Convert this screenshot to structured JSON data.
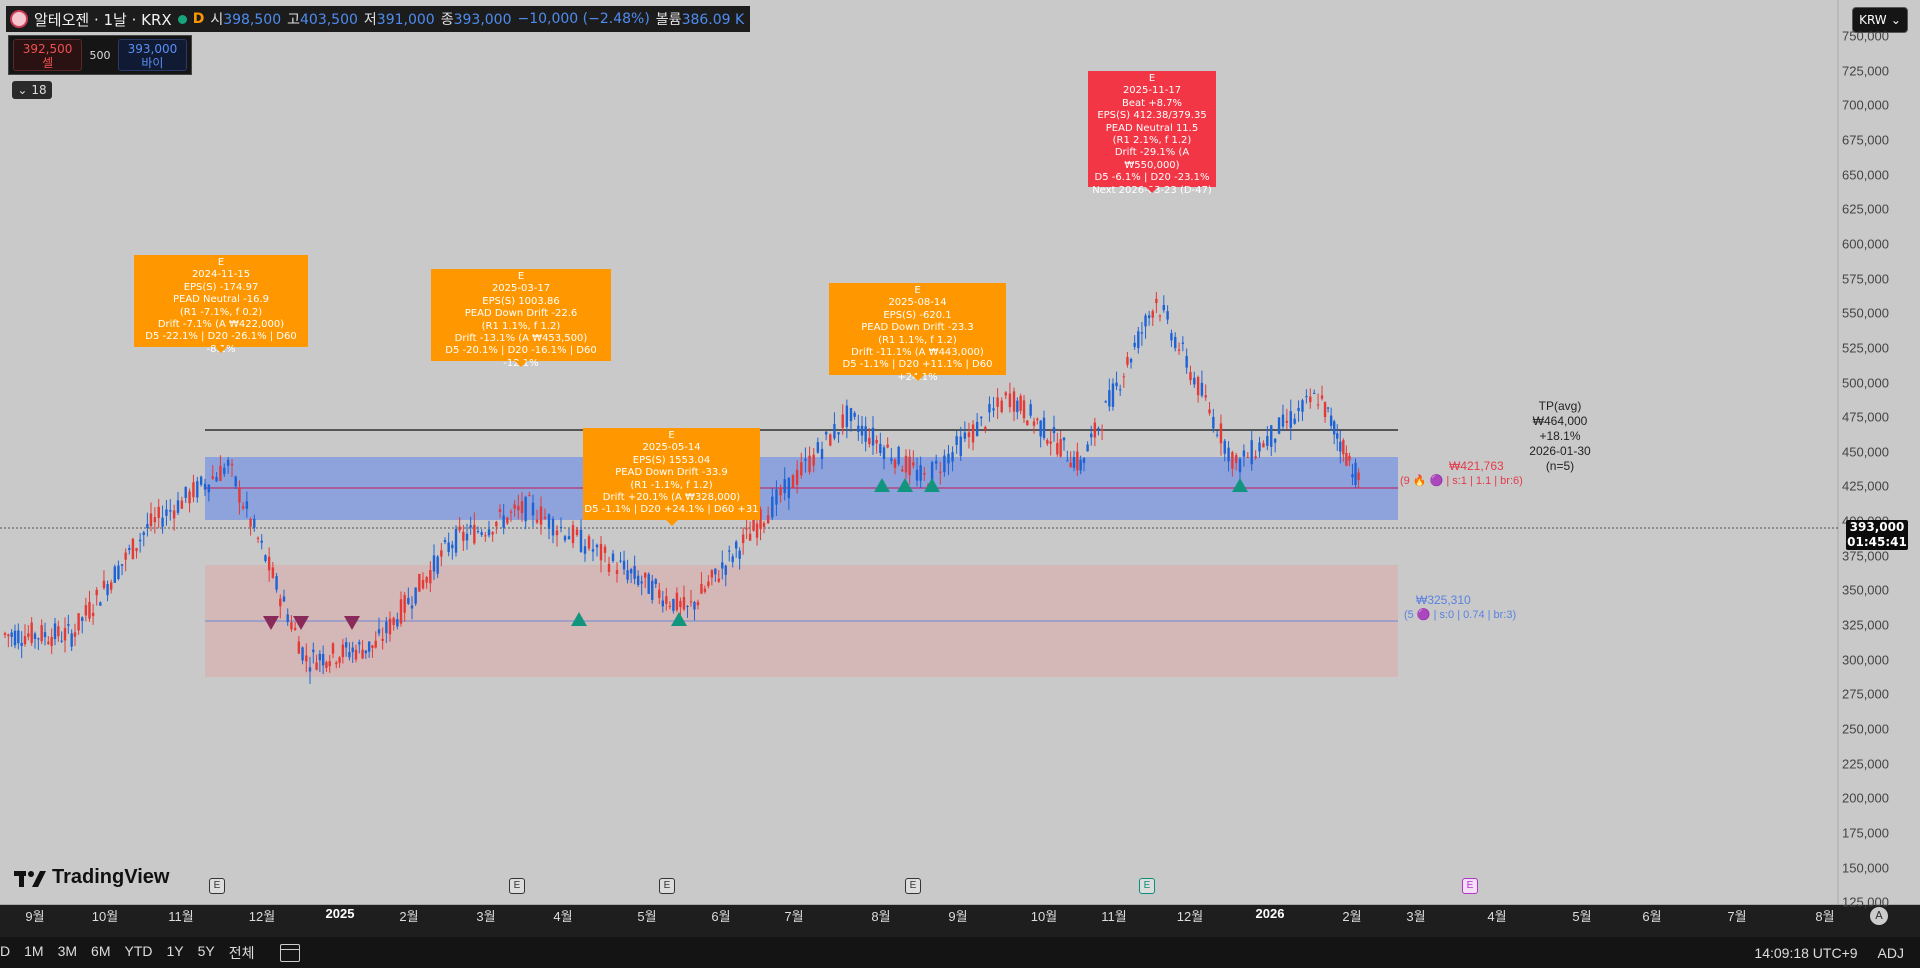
{
  "legend": {
    "symbol": "알테오젠 · 1날 · KRX",
    "interval_badge": "D",
    "open_label": "시",
    "open": "398,500",
    "high_label": "고",
    "high": "403,500",
    "low_label": "저",
    "low": "391,000",
    "close_label": "종",
    "close": "393,000",
    "change": "−10,000 (−2.48%)",
    "volume_label": "볼륨",
    "volume": "386.09 K"
  },
  "trade": {
    "sell_price": "392,500",
    "sell_label": "셀",
    "qty": "500",
    "buy_price": "393,000",
    "buy_label": "바이"
  },
  "indicators_count": "18",
  "currency": "KRW",
  "price_axis": [
    "750,000",
    "725,000",
    "700,000",
    "675,000",
    "650,000",
    "625,000",
    "600,000",
    "575,000",
    "550,000",
    "525,000",
    "500,000",
    "475,000",
    "450,000",
    "425,000",
    "400,000",
    "375,000",
    "350,000",
    "325,000",
    "300,000",
    "275,000",
    "250,000",
    "225,000",
    "200,000",
    "175,000",
    "150,000",
    "125,000"
  ],
  "current_price": {
    "price": "393,000",
    "countdown": "01:45:41"
  },
  "time_axis": [
    {
      "label": "9월",
      "bold": false
    },
    {
      "label": "10월",
      "bold": false
    },
    {
      "label": "11월",
      "bold": false
    },
    {
      "label": "12월",
      "bold": false
    },
    {
      "label": "2025",
      "bold": true
    },
    {
      "label": "2월",
      "bold": false
    },
    {
      "label": "3월",
      "bold": false
    },
    {
      "label": "4월",
      "bold": false
    },
    {
      "label": "5월",
      "bold": false
    },
    {
      "label": "6월",
      "bold": false
    },
    {
      "label": "7월",
      "bold": false
    },
    {
      "label": "8월",
      "bold": false
    },
    {
      "label": "9월",
      "bold": false
    },
    {
      "label": "10월",
      "bold": false
    },
    {
      "label": "11월",
      "bold": false
    },
    {
      "label": "12월",
      "bold": false
    },
    {
      "label": "2026",
      "bold": true
    },
    {
      "label": "2월",
      "bold": false
    },
    {
      "label": "3월",
      "bold": false
    },
    {
      "label": "4월",
      "bold": false
    },
    {
      "label": "5월",
      "bold": false
    },
    {
      "label": "6월",
      "bold": false
    },
    {
      "label": "7월",
      "bold": false
    },
    {
      "label": "8월",
      "bold": false
    }
  ],
  "annotations": [
    {
      "color": "orange",
      "lines": [
        "E",
        "2024-11-15",
        "EPS(S) -174.97",
        "PEAD Neutral -16.9",
        "(R1 -7.1%, f 0.2)",
        "Drift -7.1% (A ₩422,000)",
        "D5 -22.1% | D20 -26.1% | D60 -8.1%"
      ]
    },
    {
      "color": "orange",
      "lines": [
        "E",
        "2025-03-17",
        "EPS(S) 1003.86",
        "PEAD Down Drift -22.6",
        "(R1 1.1%, f 1.2)",
        "Drift -13.1% (A ₩453,500)",
        "D5 -20.1% | D20 -16.1% | D60 -12.1%"
      ]
    },
    {
      "color": "orange",
      "lines": [
        "E",
        "2025-05-14",
        "EPS(S) 1553.04",
        "PEAD Down Drift -33.9",
        "(R1 -1.1%, f 1.2)",
        "Drift +20.1% (A ₩328,000)",
        "D5 -1.1% | D20 +24.1% | D60 +31"
      ]
    },
    {
      "color": "orange",
      "lines": [
        "E",
        "2025-08-14",
        "EPS(S) -620.1",
        "PEAD Down Drift -23.3",
        "(R1 1.1%, f 1.2)",
        "Drift -11.1% (A ₩443,000)",
        "D5 -1.1% | D20 +11.1% | D60 +24.1%"
      ]
    },
    {
      "color": "red",
      "lines": [
        "E",
        "2025-11-17",
        "Beat +8.7%",
        "EPS(S) 412.38/379.35",
        "PEAD Neutral 11.5",
        "(R1 2.1%, f 1.2)",
        "Drift -29.1% (A ₩550,000)",
        "D5 -6.1% | D20 -23.1%",
        "Next 2026-03-23 (D-47)"
      ]
    }
  ],
  "zones": {
    "upper": {
      "price": "₩421,763",
      "info": "(9 🔥 🟣 | s:1 | 1.1 | br:6)"
    },
    "lower": {
      "price": "₩325,310",
      "info": "(5 🟣 | s:0 | 0.74 | br:3)"
    }
  },
  "target": {
    "line1": "TP(avg) ₩464,000",
    "line2": "+18.1%",
    "line3": "2026-01-30",
    "line4": "(n=5)"
  },
  "earnings_markers": [
    {
      "label": "E",
      "style": "normal"
    },
    {
      "label": "E",
      "style": "normal"
    },
    {
      "label": "E",
      "style": "normal"
    },
    {
      "label": "E",
      "style": "normal"
    },
    {
      "label": "E",
      "style": "teal"
    },
    {
      "label": "E",
      "style": "purple"
    }
  ],
  "branding": "TradingView",
  "toolbar": {
    "ranges": [
      "D",
      "1M",
      "3M",
      "6M",
      "YTD",
      "1Y",
      "5Y",
      "전체"
    ],
    "clock": "14:09:18 UTC+9",
    "adj": "ADJ"
  },
  "auto_scale_label": "A",
  "colors": {
    "up": "#e53935",
    "down": "#1e63d6",
    "orange": "#ff9800",
    "red": "#f23645",
    "zone_blue": "#7b96e0",
    "zone_red": "#d9b1b1",
    "teal": "#12957e"
  },
  "chart_data": {
    "type": "candlestick",
    "instrument": "알테오젠",
    "exchange": "KRX",
    "interval": "1날",
    "y_range": [
      125000,
      750000
    ],
    "x_range": [
      "2024-08",
      "2026-08"
    ],
    "last_ohlc": {
      "open": 398500,
      "high": 403500,
      "low": 391000,
      "close": 393000
    },
    "monthly_close_approx": [
      {
        "month": "2024-09",
        "close": 318000
      },
      {
        "month": "2024-10",
        "close": 395000
      },
      {
        "month": "2024-11",
        "close": 440000
      },
      {
        "month": "2024-12",
        "close": 300000
      },
      {
        "month": "2025-01",
        "close": 310000
      },
      {
        "month": "2025-02",
        "close": 385000
      },
      {
        "month": "2025-03",
        "close": 410000
      },
      {
        "month": "2025-04",
        "close": 370000
      },
      {
        "month": "2025-05",
        "close": 335000
      },
      {
        "month": "2025-06",
        "close": 400000
      },
      {
        "month": "2025-07",
        "close": 475000
      },
      {
        "month": "2025-08",
        "close": 430000
      },
      {
        "month": "2025-09",
        "close": 490000
      },
      {
        "month": "2025-10",
        "close": 440000
      },
      {
        "month": "2025-11",
        "close": 560000
      },
      {
        "month": "2025-12",
        "close": 440000
      },
      {
        "month": "2026-01",
        "close": 490000
      },
      {
        "month": "2026-02",
        "close": 393000
      }
    ],
    "levels": [
      {
        "name": "TP(avg)",
        "price": 464000
      },
      {
        "name": "upper_zone_mid",
        "price": 421763,
        "zone": [
          400000,
          445000
        ]
      },
      {
        "name": "lower_zone_mid",
        "price": 325310,
        "zone": [
          285000,
          365000
        ]
      }
    ]
  }
}
